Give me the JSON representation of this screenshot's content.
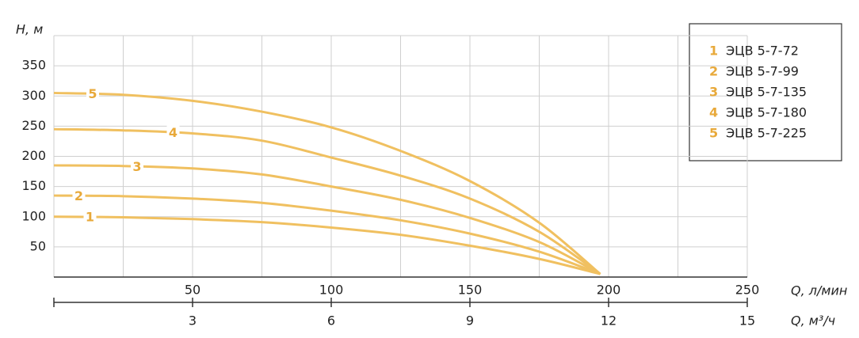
{
  "chart_data": {
    "type": "line",
    "ylabel": "H, м",
    "xlabel": "Q, л/мин",
    "x2label": "Q, м³/ч",
    "x": [
      0,
      25,
      50,
      75,
      100,
      125,
      150,
      175,
      197
    ],
    "xlim": [
      0,
      250
    ],
    "xticks": [
      50,
      100,
      150,
      200,
      250
    ],
    "xgrid": [
      25,
      50,
      75,
      100,
      125,
      150,
      175,
      200,
      225,
      250
    ],
    "x2lim": [
      0,
      15
    ],
    "x2ticks": [
      3,
      6,
      9,
      12,
      15
    ],
    "ylim": [
      0,
      400
    ],
    "yticks": [
      50,
      100,
      150,
      200,
      250,
      300,
      350
    ],
    "grid": true,
    "legend": "upper right",
    "series": [
      {
        "label": "1",
        "name": "ЭЦВ 5-7-72",
        "color": "#f0c060",
        "values": [
          100,
          99,
          96,
          91,
          82,
          70,
          52,
          30,
          5
        ]
      },
      {
        "label": "2",
        "name": "ЭЦВ 5-7-99",
        "color": "#f0c060",
        "values": [
          135,
          134,
          130,
          123,
          110,
          94,
          72,
          42,
          5
        ]
      },
      {
        "label": "3",
        "name": "ЭЦВ 5-7-135",
        "color": "#f0c060",
        "values": [
          185,
          184,
          180,
          170,
          150,
          128,
          98,
          58,
          5
        ]
      },
      {
        "label": "4",
        "name": "ЭЦВ 5-7-180",
        "color": "#f0c060",
        "values": [
          245,
          243,
          238,
          226,
          198,
          168,
          130,
          75,
          5
        ]
      },
      {
        "label": "5",
        "name": "ЭЦВ 5-7-225",
        "color": "#f0c060",
        "values": [
          305,
          302,
          292,
          274,
          248,
          209,
          159,
          90,
          5
        ]
      }
    ]
  }
}
